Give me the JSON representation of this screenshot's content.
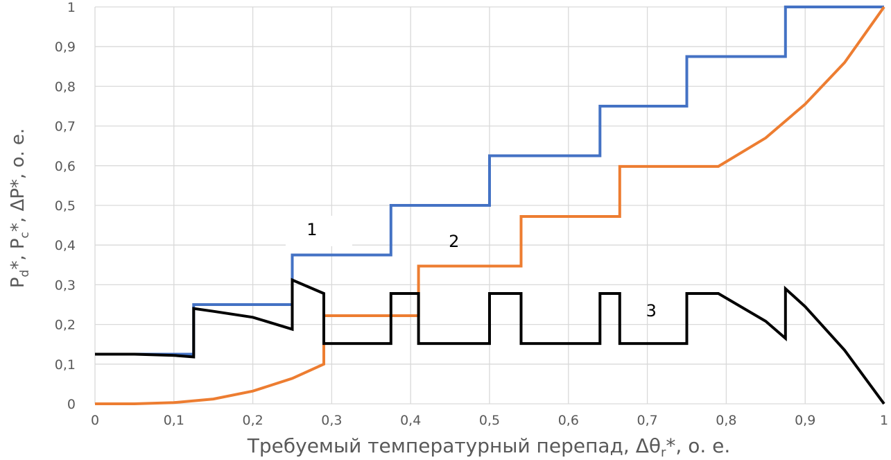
{
  "chart_data": {
    "type": "line",
    "xlabel": "Требуемый температурный перепад, Δθ",
    "xlabel_sub": "r",
    "xlabel_tail": "*, о. е.",
    "ylabel_parts": [
      "P",
      "d",
      "*, P",
      "c",
      "*, ΔP*, о. е."
    ],
    "xlim": [
      0,
      1
    ],
    "ylim": [
      0,
      1
    ],
    "grid": true,
    "x_ticks": [
      "0",
      "0,1",
      "0,2",
      "0,3",
      "0,4",
      "0,5",
      "0,6",
      "0,7",
      "0,8",
      "0,9",
      "1"
    ],
    "y_ticks": [
      "0",
      "0,1",
      "0,2",
      "0,3",
      "0,4",
      "0,5",
      "0,6",
      "0,7",
      "0,8",
      "0,9",
      "1"
    ],
    "series": [
      {
        "color": "#4472c4",
        "points": [
          [
            0,
            0.125
          ],
          [
            0.125,
            0.125
          ],
          [
            0.125,
            0.25
          ],
          [
            0.25,
            0.25
          ],
          [
            0.25,
            0.375
          ],
          [
            0.375,
            0.375
          ],
          [
            0.375,
            0.5
          ],
          [
            0.5,
            0.5
          ],
          [
            0.5,
            0.625
          ],
          [
            0.64,
            0.625
          ],
          [
            0.64,
            0.75
          ],
          [
            0.75,
            0.75
          ],
          [
            0.75,
            0.875
          ],
          [
            0.875,
            0.875
          ],
          [
            0.875,
            1
          ],
          [
            1,
            1
          ]
        ]
      },
      {
        "color": "#ed7d31",
        "points": [
          [
            0,
            0
          ],
          [
            0.05,
            0
          ],
          [
            0.1,
            0.003
          ],
          [
            0.15,
            0.012
          ],
          [
            0.2,
            0.032
          ],
          [
            0.25,
            0.064
          ],
          [
            0.29,
            0.1
          ],
          [
            0.29,
            0.222
          ],
          [
            0.41,
            0.222
          ],
          [
            0.41,
            0.347
          ],
          [
            0.54,
            0.347
          ],
          [
            0.54,
            0.472
          ],
          [
            0.665,
            0.472
          ],
          [
            0.665,
            0.598
          ],
          [
            0.79,
            0.598
          ],
          [
            0.85,
            0.67
          ],
          [
            0.9,
            0.755
          ],
          [
            0.95,
            0.86
          ],
          [
            1,
            1
          ]
        ]
      },
      {
        "color": "#000000",
        "points": [
          [
            0,
            0.125
          ],
          [
            0.05,
            0.125
          ],
          [
            0.1,
            0.122
          ],
          [
            0.125,
            0.118
          ],
          [
            0.125,
            0.24
          ],
          [
            0.15,
            0.233
          ],
          [
            0.2,
            0.218
          ],
          [
            0.25,
            0.188
          ],
          [
            0.25,
            0.312
          ],
          [
            0.29,
            0.278
          ],
          [
            0.29,
            0.152
          ],
          [
            0.375,
            0.152
          ],
          [
            0.375,
            0.278
          ],
          [
            0.41,
            0.278
          ],
          [
            0.41,
            0.152
          ],
          [
            0.5,
            0.152
          ],
          [
            0.5,
            0.278
          ],
          [
            0.54,
            0.278
          ],
          [
            0.54,
            0.152
          ],
          [
            0.64,
            0.152
          ],
          [
            0.64,
            0.278
          ],
          [
            0.665,
            0.278
          ],
          [
            0.665,
            0.152
          ],
          [
            0.75,
            0.152
          ],
          [
            0.75,
            0.278
          ],
          [
            0.79,
            0.278
          ],
          [
            0.85,
            0.208
          ],
          [
            0.875,
            0.165
          ],
          [
            0.875,
            0.29
          ],
          [
            0.9,
            0.245
          ],
          [
            0.95,
            0.135
          ],
          [
            1,
            0
          ]
        ]
      }
    ],
    "annotations": [
      {
        "text": "1",
        "x": 0.275,
        "y": 0.425
      },
      {
        "text": "2",
        "x": 0.455,
        "y": 0.395
      },
      {
        "text": "3",
        "x": 0.705,
        "y": 0.22
      }
    ]
  }
}
